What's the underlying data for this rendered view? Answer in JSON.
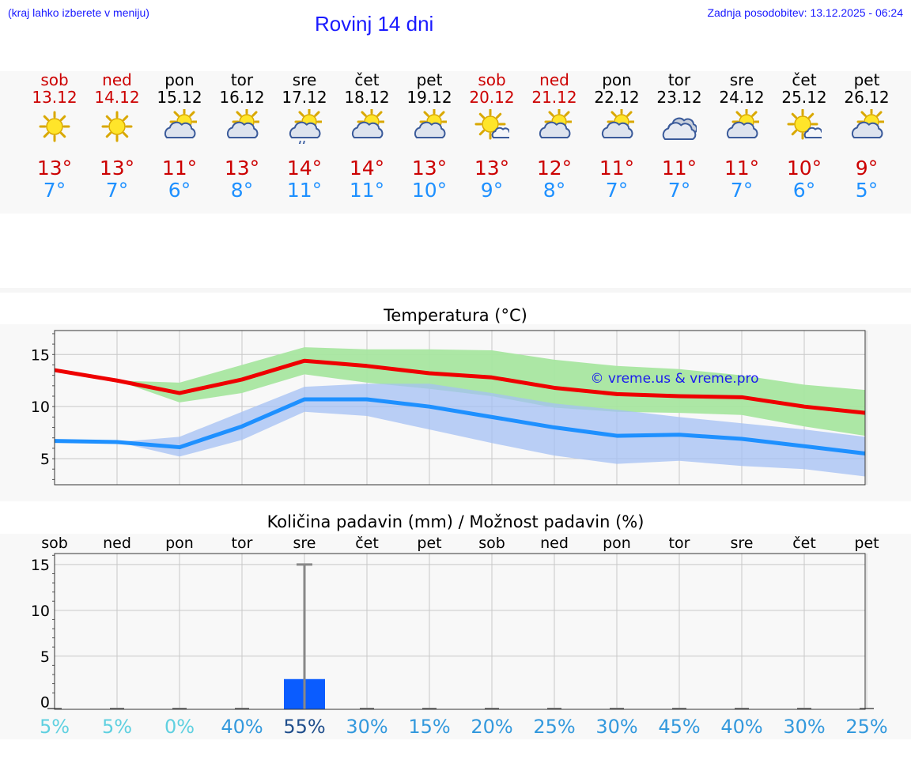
{
  "header": {
    "note": "(kraj lahko izberete v meniju)",
    "title": "Rovinj 14 dni",
    "updated": "Zadnja posodobitev: 13.12.2025 - 06:24"
  },
  "days": [
    {
      "name": "sob",
      "date": "13.12",
      "weekend": true,
      "icon": "sun-icon",
      "max": "13°",
      "min": "7°"
    },
    {
      "name": "ned",
      "date": "14.12",
      "weekend": true,
      "icon": "sun-icon",
      "max": "13°",
      "min": "7°"
    },
    {
      "name": "pon",
      "date": "15.12",
      "weekend": false,
      "icon": "partly-cloudy-icon",
      "max": "11°",
      "min": "6°"
    },
    {
      "name": "tor",
      "date": "16.12",
      "weekend": false,
      "icon": "partly-cloudy-icon",
      "max": "13°",
      "min": "8°"
    },
    {
      "name": "sre",
      "date": "17.12",
      "weekend": false,
      "icon": "partly-cloudy-rain-icon",
      "max": "14°",
      "min": "11°"
    },
    {
      "name": "čet",
      "date": "18.12",
      "weekend": false,
      "icon": "partly-cloudy-icon",
      "max": "14°",
      "min": "11°"
    },
    {
      "name": "pet",
      "date": "19.12",
      "weekend": false,
      "icon": "partly-cloudy-icon",
      "max": "13°",
      "min": "10°"
    },
    {
      "name": "sob",
      "date": "20.12",
      "weekend": true,
      "icon": "mostly-sunny-icon",
      "max": "13°",
      "min": "9°"
    },
    {
      "name": "ned",
      "date": "21.12",
      "weekend": true,
      "icon": "partly-cloudy-icon",
      "max": "12°",
      "min": "8°"
    },
    {
      "name": "pon",
      "date": "22.12",
      "weekend": false,
      "icon": "partly-cloudy-icon",
      "max": "11°",
      "min": "7°"
    },
    {
      "name": "tor",
      "date": "23.12",
      "weekend": false,
      "icon": "cloudy-icon",
      "max": "11°",
      "min": "7°"
    },
    {
      "name": "sre",
      "date": "24.12",
      "weekend": false,
      "icon": "partly-cloudy-icon",
      "max": "11°",
      "min": "7°"
    },
    {
      "name": "čet",
      "date": "25.12",
      "weekend": false,
      "icon": "mostly-sunny-icon",
      "max": "10°",
      "min": "6°"
    },
    {
      "name": "pet",
      "date": "26.12",
      "weekend": false,
      "icon": "partly-cloudy-icon",
      "max": "9°",
      "min": "5°"
    }
  ],
  "colors": {
    "max_line": "#ee0000",
    "min_line": "#1e90ff",
    "max_band": "#a8e6a0",
    "min_band": "#a4c0f4",
    "overlap_band": "#7cc0a0",
    "bar": "#0a5cff",
    "error_bar": "#888888"
  },
  "chart_data": [
    {
      "type": "line",
      "title": "Temperatura (°C)",
      "watermark": "© vreme.us & vreme.pro",
      "x": [
        0,
        1,
        2,
        3,
        4,
        5,
        6,
        7,
        8,
        9,
        10,
        11,
        12,
        13
      ],
      "ylim": [
        2.5,
        17.3
      ],
      "yticks": [
        5,
        10,
        15
      ],
      "grid": true,
      "series": [
        {
          "name": "max",
          "values": [
            13.5,
            12.5,
            11.3,
            12.6,
            14.4,
            13.9,
            13.2,
            12.8,
            11.8,
            11.2,
            11.0,
            10.9,
            10.0,
            9.4
          ]
        },
        {
          "name": "min",
          "values": [
            6.7,
            6.6,
            6.1,
            8.1,
            10.7,
            10.7,
            10.0,
            9.0,
            8.0,
            7.2,
            7.3,
            6.9,
            6.2,
            5.5
          ]
        }
      ],
      "bands": [
        {
          "name": "max-range",
          "low": [
            13.5,
            12.5,
            10.4,
            11.3,
            13.1,
            12.3,
            11.7,
            11.0,
            9.9,
            9.5,
            9.4,
            9.2,
            8.1,
            7.2
          ],
          "high": [
            13.5,
            12.5,
            12.3,
            14.0,
            15.7,
            15.5,
            15.5,
            15.4,
            14.5,
            13.9,
            13.6,
            13.0,
            12.1,
            11.6
          ]
        },
        {
          "name": "min-range",
          "low": [
            6.7,
            6.6,
            5.2,
            6.8,
            9.5,
            9.1,
            7.8,
            6.5,
            5.3,
            4.5,
            4.8,
            4.3,
            4.0,
            3.3
          ],
          "high": [
            6.7,
            6.6,
            7.1,
            9.5,
            11.9,
            12.2,
            12.2,
            11.3,
            10.3,
            9.7,
            9.0,
            8.4,
            7.8,
            7.1
          ]
        }
      ]
    },
    {
      "type": "bar",
      "title": "Količina padavin (mm) / Možnost padavin (%)",
      "categories": [
        "sob",
        "ned",
        "pon",
        "tor",
        "sre",
        "čet",
        "pet",
        "sob",
        "ned",
        "pon",
        "tor",
        "sre",
        "čet",
        "pet"
      ],
      "values": [
        0,
        0,
        0,
        0,
        2.5,
        0,
        0,
        0,
        0,
        0,
        0,
        0,
        0,
        0
      ],
      "error_high": [
        0,
        0,
        0,
        0,
        15,
        0,
        0,
        0,
        0,
        0,
        0,
        0,
        0,
        0
      ],
      "chance": [
        "5%",
        "5%",
        "0%",
        "40%",
        "55%",
        "30%",
        "15%",
        "20%",
        "25%",
        "30%",
        "45%",
        "40%",
        "30%",
        "25%"
      ],
      "ylim": [
        -0.8,
        16.2
      ],
      "yticks": [
        0,
        5,
        10,
        15
      ],
      "grid": true
    }
  ]
}
